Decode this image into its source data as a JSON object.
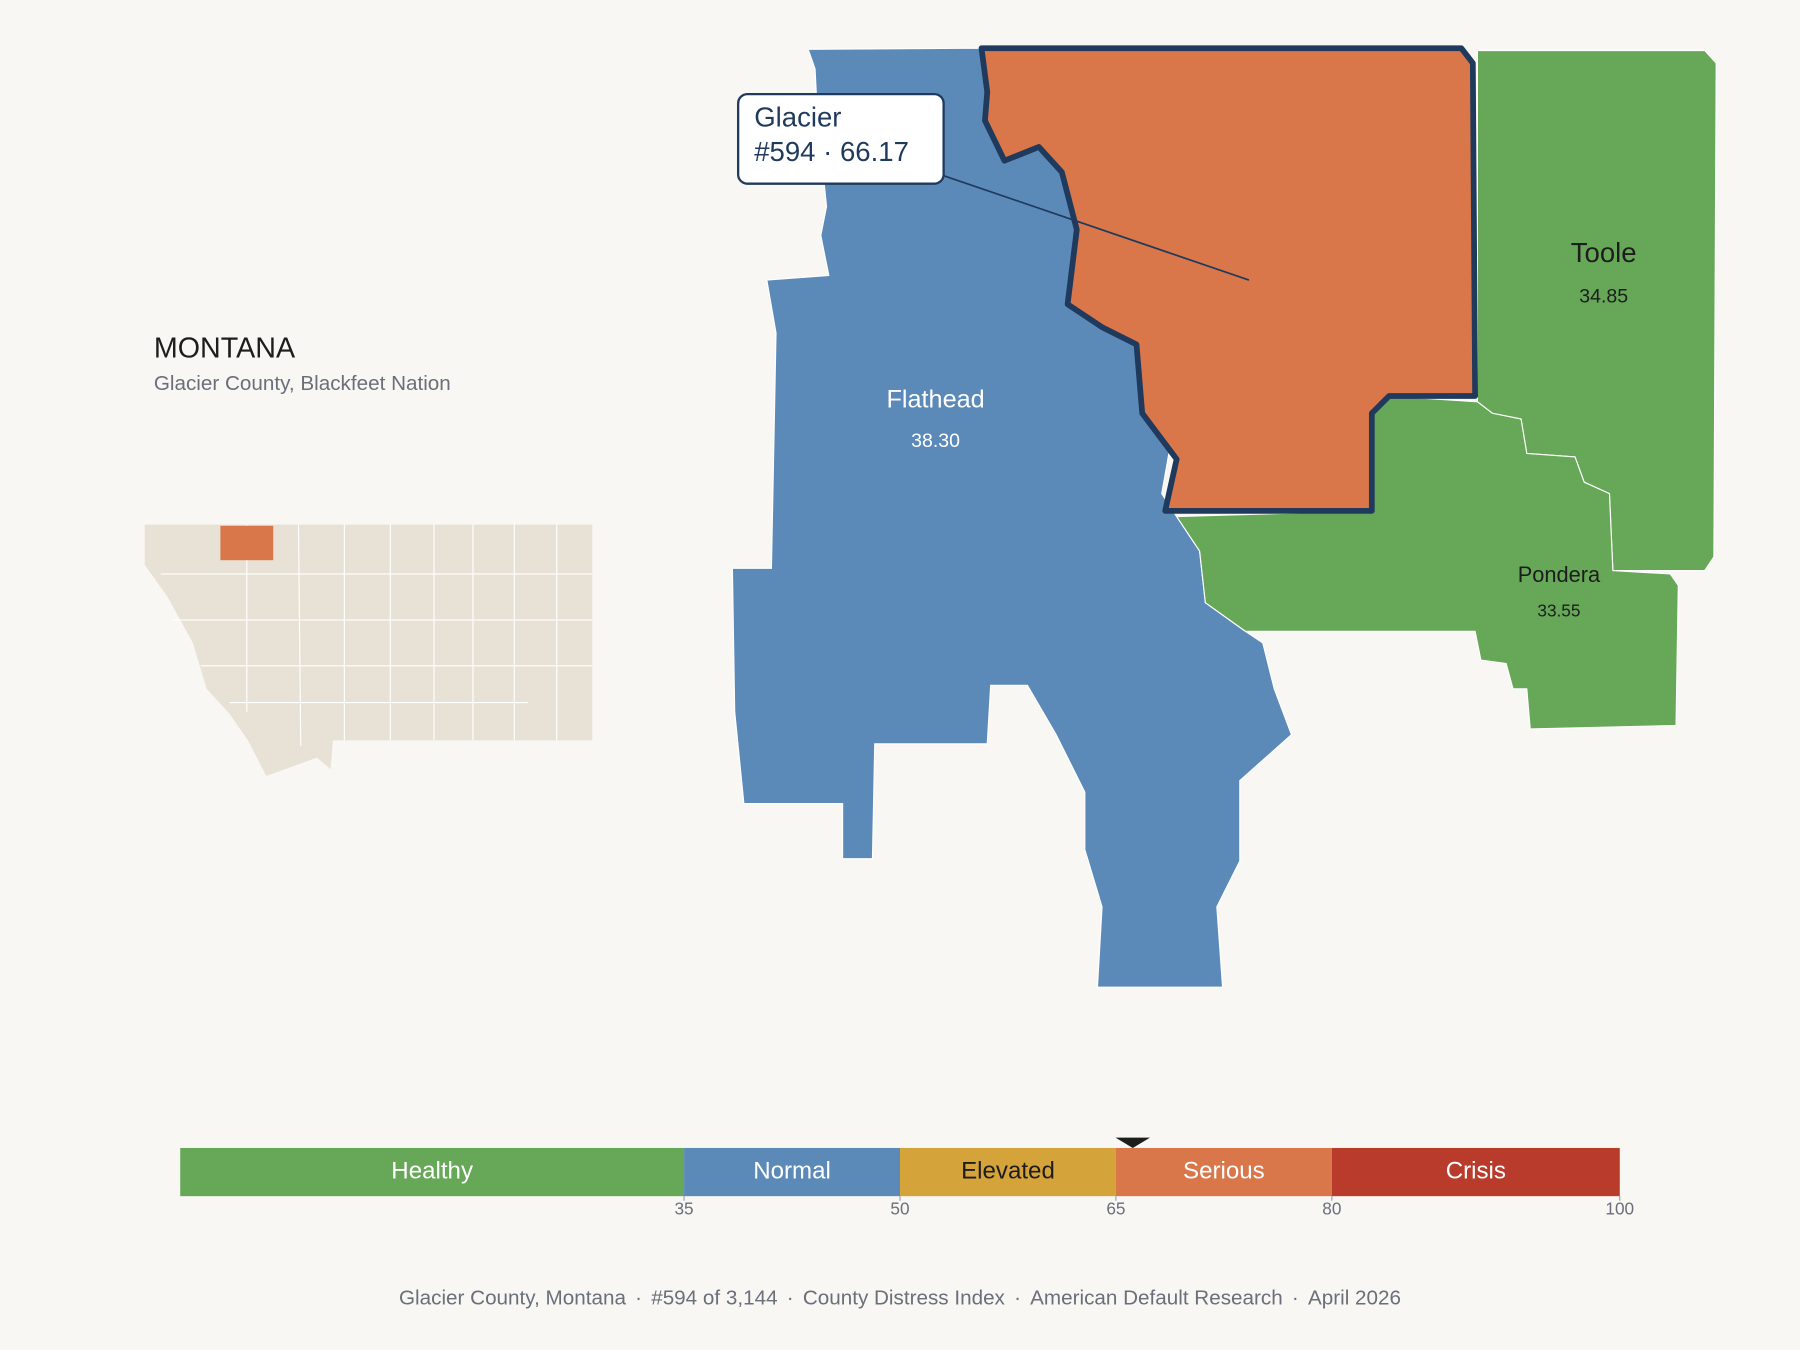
{
  "header": {
    "title": "MONTANA",
    "subtitle": "Glacier County, Blackfeet Nation"
  },
  "counties": [
    {
      "name": "Flathead",
      "value": 38.3,
      "value_label": "38.30"
    },
    {
      "name": "Glacier",
      "value": 66.17,
      "value_label": "66.17"
    },
    {
      "name": "Toole",
      "value": 34.85,
      "value_label": "34.85"
    },
    {
      "name": "Pondera",
      "value": 33.55,
      "value_label": "33.55"
    }
  ],
  "tooltip": {
    "title": "Glacier",
    "line": "#594 · 66.17"
  },
  "legend": {
    "range": [
      0,
      100
    ],
    "ticks": [
      35,
      50,
      65,
      80,
      100
    ],
    "bands": [
      {
        "label": "Healthy",
        "from": 0,
        "to": 35,
        "color": "#66a758",
        "text_color": "#ffffff"
      },
      {
        "label": "Normal",
        "from": 35,
        "to": 50,
        "color": "#5b8ab9",
        "text_color": "#ffffff"
      },
      {
        "label": "Elevated",
        "from": 50,
        "to": 65,
        "color": "#d4a33a",
        "text_color": "#1d1d1d"
      },
      {
        "label": "Serious",
        "from": 65,
        "to": 80,
        "color": "#d9774a",
        "text_color": "#ffffff"
      },
      {
        "label": "Crisis",
        "from": 80,
        "to": 100,
        "color": "#b83b2b",
        "text_color": "#ffffff"
      }
    ],
    "marker": 66.17
  },
  "footer": {
    "separator": "·",
    "parts": [
      "Glacier County, Montana",
      "#594 of 3,144",
      "County Distress Index",
      "American Default Research",
      "April 2026"
    ]
  }
}
